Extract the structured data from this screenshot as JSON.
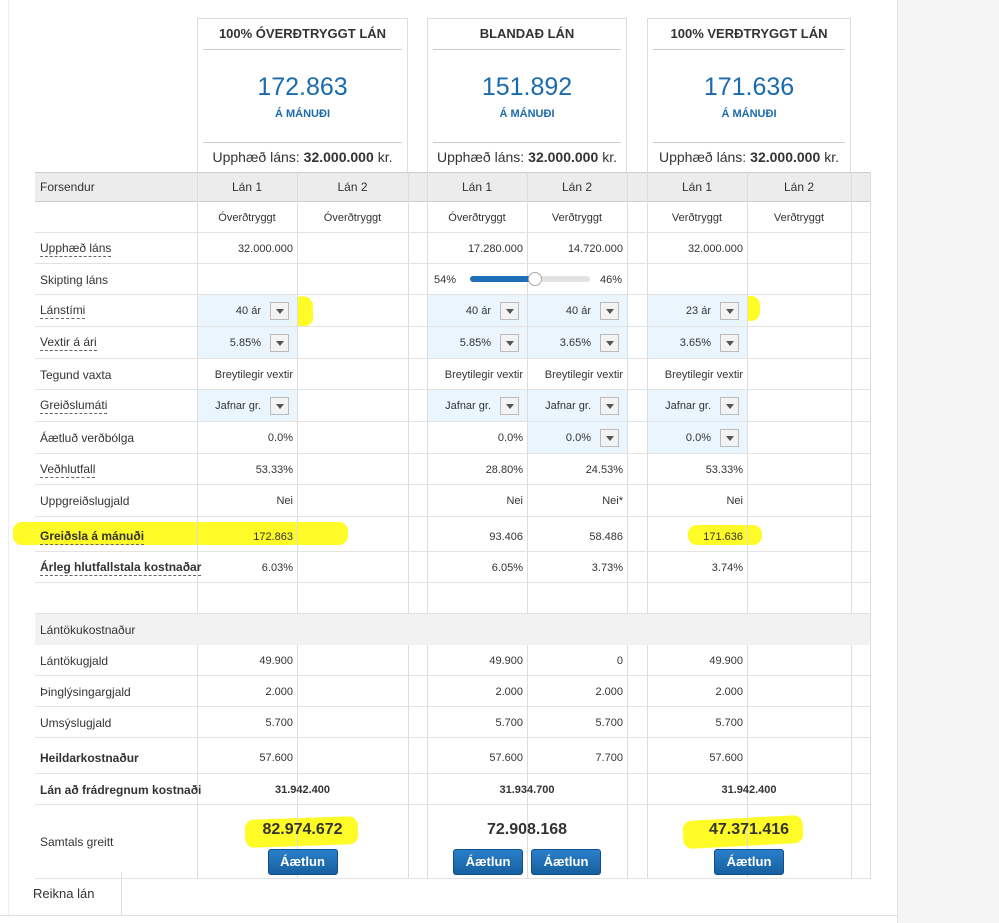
{
  "plans": [
    {
      "title": "100% ÓVERÐTRYGGT LÁN",
      "payment": "172.863",
      "payment_unit": "Á MÁNUÐI",
      "amount_label": "Upphæð láns:",
      "amount": "32.000.000",
      "amount_unit": "kr."
    },
    {
      "title": "BLANDAÐ LÁN",
      "payment": "151.892",
      "payment_unit": "Á MÁNUÐI",
      "amount_label": "Upphæð láns:",
      "amount": "32.000.000",
      "amount_unit": "kr."
    },
    {
      "title": "100% VERÐTRYGGT LÁN",
      "payment": "171.636",
      "payment_unit": "Á MÁNUÐI",
      "amount_label": "Upphæð láns:",
      "amount": "32.000.000",
      "amount_unit": "kr."
    }
  ],
  "table": {
    "header": [
      "Forsendur",
      "Lán 1",
      "Lán 2",
      "Lán 1",
      "Lán 2",
      "Lán 1",
      "Lán 2"
    ],
    "rows": [
      {
        "label": null,
        "center": true,
        "cells": [
          "Óverðtryggt",
          "Óverðtryggt",
          "Óverðtryggt",
          "Verðtryggt",
          "Verðtryggt",
          "Verðtryggt"
        ]
      },
      {
        "label": "Upphæð láns",
        "dashed": true,
        "cells": [
          "32.000.000",
          null,
          "17.280.000",
          "14.720.000",
          "32.000.000",
          null
        ]
      },
      {
        "label": "Skipting láns",
        "split": {
          "left": "54%",
          "right": "46%",
          "value": 54
        }
      },
      {
        "label": "Lánstími",
        "dashed": true,
        "cells": [
          "40 ár",
          null,
          "40 ár",
          "40 ár",
          "23 ár",
          null
        ],
        "input": [
          true,
          false,
          true,
          true,
          true,
          false
        ]
      },
      {
        "label": "Vextir á ári",
        "dashed": true,
        "cells": [
          "5.85%",
          null,
          "5.85%",
          "3.65%",
          "3.65%",
          null
        ],
        "input": [
          true,
          false,
          true,
          true,
          true,
          false
        ]
      },
      {
        "label": "Tegund vaxta",
        "cells": [
          "Breytilegir vextir",
          null,
          "Breytilegir vextir",
          "Breytilegir vextir",
          "Breytilegir vextir",
          null
        ]
      },
      {
        "label": "Greiðslumáti",
        "dashed": true,
        "cells": [
          "Jafnar gr.",
          null,
          "Jafnar gr.",
          "Jafnar gr.",
          "Jafnar gr.",
          null
        ],
        "input": [
          true,
          false,
          true,
          true,
          true,
          false
        ]
      },
      {
        "label": "Áætluð verðbólga",
        "cells": [
          "0.0%",
          null,
          "0.0%",
          "0.0%",
          "0.0%",
          null
        ],
        "input": [
          false,
          false,
          false,
          true,
          true,
          false
        ]
      },
      {
        "label": "Veðhlutfall",
        "dashed": true,
        "cells": [
          "53.33%",
          null,
          "28.80%",
          "24.53%",
          "53.33%",
          null
        ]
      },
      {
        "label": "Uppgreiðslugjald",
        "cells": [
          "Nei",
          null,
          "Nei",
          "Nei*",
          "Nei",
          null
        ]
      },
      {
        "label": "Greiðsla á mánuði",
        "bold": true,
        "dashed": true,
        "cells": [
          "172.863",
          null,
          "93.406",
          "58.486",
          "171.636",
          null
        ]
      },
      {
        "label": "Árleg hlutfallstala kostnaðar",
        "bold": true,
        "dashed": true,
        "cells": [
          "6.03%",
          null,
          "6.05%",
          "3.73%",
          "3.74%",
          null
        ]
      },
      {
        "label": null,
        "cells": [
          null,
          null,
          null,
          null,
          null,
          null
        ]
      },
      {
        "section": "Lántökukostnaður"
      },
      {
        "label": "Lántökugjald",
        "cells": [
          "49.900",
          null,
          "49.900",
          "0",
          "49.900",
          null
        ]
      },
      {
        "label": "Þinglýsingargjald",
        "cells": [
          "2.000",
          null,
          "2.000",
          "2.000",
          "2.000",
          null
        ]
      },
      {
        "label": "Umsýslugjald",
        "cells": [
          "5.700",
          null,
          "5.700",
          "5.700",
          "5.700",
          null
        ]
      },
      {
        "label": "Heildarkostnaður",
        "bold": true,
        "cells": [
          "57.600",
          null,
          "57.600",
          "7.700",
          "57.600",
          null
        ]
      },
      {
        "label": "Lán að frádregnum kostnaði",
        "bold": true,
        "groups": [
          "31.942.400",
          "31.934.700",
          "31.942.400"
        ]
      },
      {
        "label": "Samtals greitt",
        "totals": [
          "82.974.672",
          "72.908.168",
          "47.371.416"
        ],
        "buttons": [
          [
            "Áætlun"
          ],
          [
            "Áætlun",
            "Áætlun"
          ],
          [
            "Áætlun"
          ]
        ]
      }
    ]
  },
  "tab": "Reikna lán"
}
